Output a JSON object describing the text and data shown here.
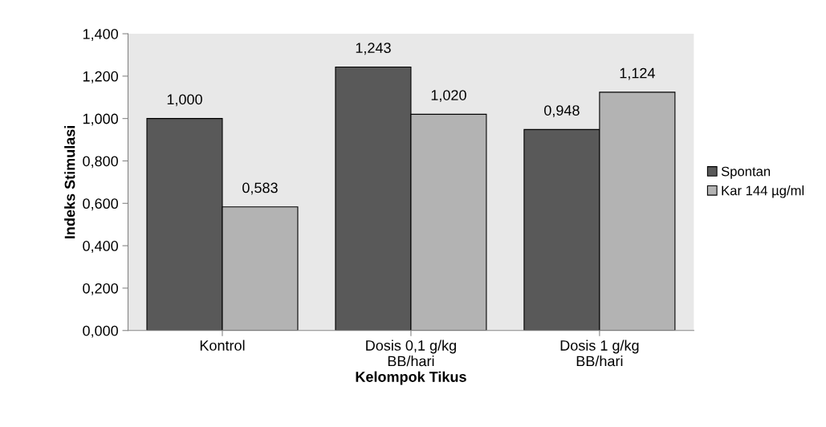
{
  "chart_data": {
    "type": "bar",
    "xlabel": "Kelompok Tikus",
    "ylabel": "Indeks Stimulasi",
    "categories": [
      "Kontrol",
      "Dosis 0,1 g/kg BB/hari",
      "Dosis 1 g/kg BB/hari"
    ],
    "series": [
      {
        "name": "Spontan",
        "color": "#595959",
        "values": [
          1.0,
          1.243,
          0.948
        ],
        "value_labels": [
          "1,000",
          "1,243",
          "0,948"
        ]
      },
      {
        "name": "Kar 144 µg/ml",
        "color": "#b3b3b3",
        "values": [
          0.583,
          1.02,
          1.124
        ],
        "value_labels": [
          "0,583",
          "1,020",
          "1,124"
        ]
      }
    ],
    "ylim": [
      0,
      1.4
    ],
    "yticks": [
      {
        "value": 0,
        "label": "0,000"
      },
      {
        "value": 0.2,
        "label": "0,200"
      },
      {
        "value": 0.4,
        "label": "0,400"
      },
      {
        "value": 0.6,
        "label": "0,600"
      },
      {
        "value": 0.8,
        "label": "0,800"
      },
      {
        "value": 1.0,
        "label": "1,000"
      },
      {
        "value": 1.2,
        "label": "1,200"
      },
      {
        "value": 1.4,
        "label": "1,400"
      }
    ],
    "grid": false,
    "legend": "right"
  }
}
